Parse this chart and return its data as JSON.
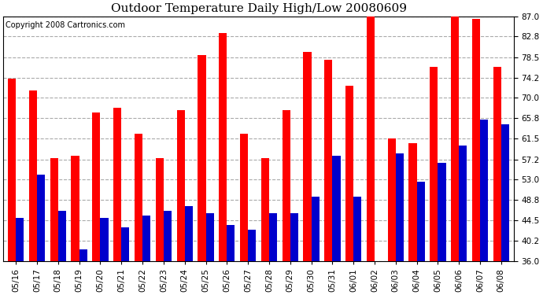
{
  "title": "Outdoor Temperature Daily High/Low 20080609",
  "copyright": "Copyright 2008 Cartronics.com",
  "dates": [
    "05/16",
    "05/17",
    "05/18",
    "05/19",
    "05/20",
    "05/21",
    "05/22",
    "05/23",
    "05/24",
    "05/25",
    "05/26",
    "05/27",
    "05/28",
    "05/29",
    "05/30",
    "05/31",
    "06/01",
    "06/02",
    "06/03",
    "06/04",
    "06/05",
    "06/06",
    "06/07",
    "06/08"
  ],
  "highs": [
    74.0,
    71.5,
    57.5,
    58.0,
    67.0,
    68.0,
    62.5,
    57.5,
    67.5,
    79.0,
    83.5,
    62.5,
    57.5,
    67.5,
    79.5,
    78.0,
    72.5,
    87.0,
    61.5,
    60.5,
    76.5,
    87.5,
    86.5,
    76.5
  ],
  "lows": [
    45.0,
    54.0,
    46.5,
    38.5,
    45.0,
    43.0,
    45.5,
    46.5,
    47.5,
    46.0,
    43.5,
    42.5,
    46.0,
    46.0,
    49.5,
    58.0,
    49.5,
    36.0,
    58.5,
    52.5,
    56.5,
    60.0,
    65.5,
    64.5
  ],
  "high_color": "#ff0000",
  "low_color": "#0000cc",
  "background_color": "#ffffff",
  "grid_color": "#aaaaaa",
  "ylim": [
    36.0,
    87.0
  ],
  "yticks": [
    36.0,
    40.2,
    44.5,
    48.8,
    53.0,
    57.2,
    61.5,
    65.8,
    70.0,
    74.2,
    78.5,
    82.8,
    87.0
  ],
  "title_fontsize": 11,
  "copyright_fontsize": 7,
  "bar_width": 0.38,
  "ybase": 36.0
}
